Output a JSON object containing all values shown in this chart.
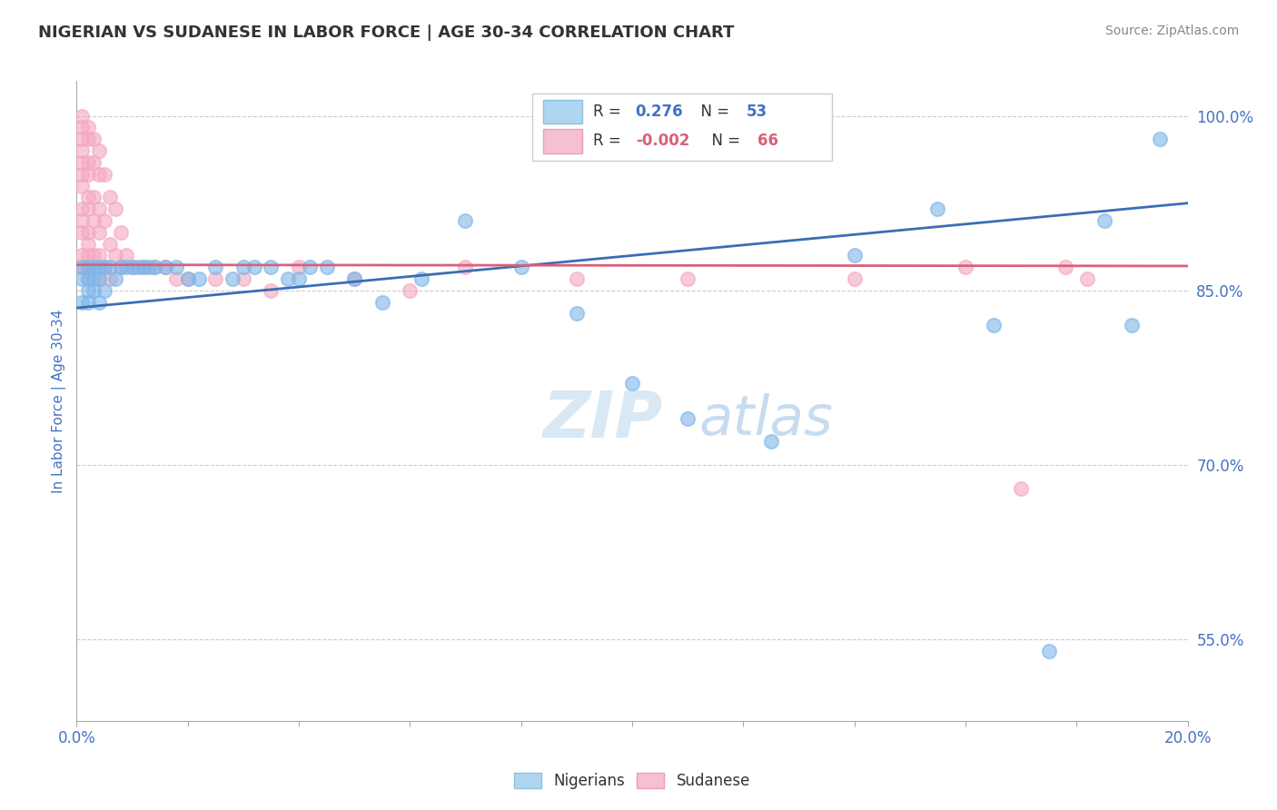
{
  "title": "NIGERIAN VS SUDANESE IN LABOR FORCE | AGE 30-34 CORRELATION CHART",
  "source": "Source: ZipAtlas.com",
  "ylabel": "In Labor Force | Age 30-34",
  "r_nigerian": 0.276,
  "n_nigerian": 53,
  "r_sudanese": -0.002,
  "n_sudanese": 66,
  "xlim": [
    0.0,
    0.2
  ],
  "ylim": [
    0.48,
    1.03
  ],
  "yticks": [
    0.55,
    0.7,
    0.85,
    1.0
  ],
  "ytick_labels": [
    "55.0%",
    "70.0%",
    "85.0%",
    "100.0%"
  ],
  "xticks": [
    0.0,
    0.02,
    0.04,
    0.06,
    0.08,
    0.1,
    0.12,
    0.14,
    0.16,
    0.18,
    0.2
  ],
  "xtick_labels": [
    "0.0%",
    "",
    "",
    "",
    "",
    "",
    "",
    "",
    "",
    "",
    "20.0%"
  ],
  "color_nigerian": "#7EB6E8",
  "color_sudanese": "#F4A8C0",
  "line_color_nigerian": "#3B6DB5",
  "line_color_sudanese": "#D9607A",
  "background_color": "#FFFFFF",
  "grid_color": "#CCCCCC",
  "title_color": "#333333",
  "tick_label_color": "#4472C4",
  "legend_box_color_nigerian": "#AED6F1",
  "legend_box_color_sudanese": "#F5C0CF",
  "nigerian_x": [
    0.001,
    0.001,
    0.001,
    0.002,
    0.002,
    0.002,
    0.002,
    0.003,
    0.003,
    0.003,
    0.004,
    0.004,
    0.004,
    0.005,
    0.005,
    0.006,
    0.007,
    0.008,
    0.009,
    0.01,
    0.011,
    0.012,
    0.013,
    0.014,
    0.016,
    0.018,
    0.02,
    0.022,
    0.025,
    0.028,
    0.03,
    0.032,
    0.035,
    0.038,
    0.04,
    0.042,
    0.045,
    0.05,
    0.055,
    0.062,
    0.07,
    0.08,
    0.09,
    0.1,
    0.11,
    0.125,
    0.14,
    0.155,
    0.165,
    0.175,
    0.185,
    0.19,
    0.195
  ],
  "nigerian_y": [
    0.87,
    0.86,
    0.84,
    0.87,
    0.86,
    0.85,
    0.84,
    0.87,
    0.86,
    0.85,
    0.87,
    0.86,
    0.84,
    0.87,
    0.85,
    0.87,
    0.86,
    0.87,
    0.87,
    0.87,
    0.87,
    0.87,
    0.87,
    0.87,
    0.87,
    0.87,
    0.86,
    0.86,
    0.87,
    0.86,
    0.87,
    0.87,
    0.87,
    0.86,
    0.86,
    0.87,
    0.87,
    0.86,
    0.84,
    0.86,
    0.91,
    0.87,
    0.83,
    0.77,
    0.74,
    0.72,
    0.88,
    0.92,
    0.82,
    0.54,
    0.91,
    0.82,
    0.98
  ],
  "sudanese_x": [
    0.001,
    0.001,
    0.001,
    0.001,
    0.001,
    0.001,
    0.001,
    0.001,
    0.001,
    0.001,
    0.001,
    0.001,
    0.002,
    0.002,
    0.002,
    0.002,
    0.002,
    0.002,
    0.002,
    0.002,
    0.002,
    0.002,
    0.002,
    0.003,
    0.003,
    0.003,
    0.003,
    0.003,
    0.003,
    0.004,
    0.004,
    0.004,
    0.004,
    0.004,
    0.004,
    0.005,
    0.005,
    0.005,
    0.006,
    0.006,
    0.006,
    0.007,
    0.007,
    0.008,
    0.008,
    0.009,
    0.01,
    0.012,
    0.014,
    0.016,
    0.018,
    0.02,
    0.025,
    0.03,
    0.035,
    0.04,
    0.05,
    0.06,
    0.07,
    0.09,
    0.11,
    0.14,
    0.16,
    0.17,
    0.178,
    0.182
  ],
  "sudanese_y": [
    1.0,
    0.99,
    0.98,
    0.97,
    0.96,
    0.95,
    0.94,
    0.92,
    0.91,
    0.9,
    0.88,
    0.87,
    0.99,
    0.98,
    0.96,
    0.95,
    0.93,
    0.92,
    0.9,
    0.89,
    0.88,
    0.87,
    0.86,
    0.98,
    0.96,
    0.93,
    0.91,
    0.88,
    0.87,
    0.97,
    0.95,
    0.92,
    0.9,
    0.88,
    0.86,
    0.95,
    0.91,
    0.87,
    0.93,
    0.89,
    0.86,
    0.92,
    0.88,
    0.9,
    0.87,
    0.88,
    0.87,
    0.87,
    0.87,
    0.87,
    0.86,
    0.86,
    0.86,
    0.86,
    0.85,
    0.87,
    0.86,
    0.85,
    0.87,
    0.86,
    0.86,
    0.86,
    0.87,
    0.68,
    0.87,
    0.86
  ],
  "nig_trend_x0": 0.0,
  "nig_trend_y0": 0.835,
  "nig_trend_x1": 0.2,
  "nig_trend_y1": 0.925,
  "sud_trend_x0": 0.0,
  "sud_trend_y0": 0.872,
  "sud_trend_x1": 0.2,
  "sud_trend_y1": 0.871,
  "watermark_zip": "ZIP",
  "watermark_atlas": "atlas",
  "watermark_color": "#D8E8F5"
}
